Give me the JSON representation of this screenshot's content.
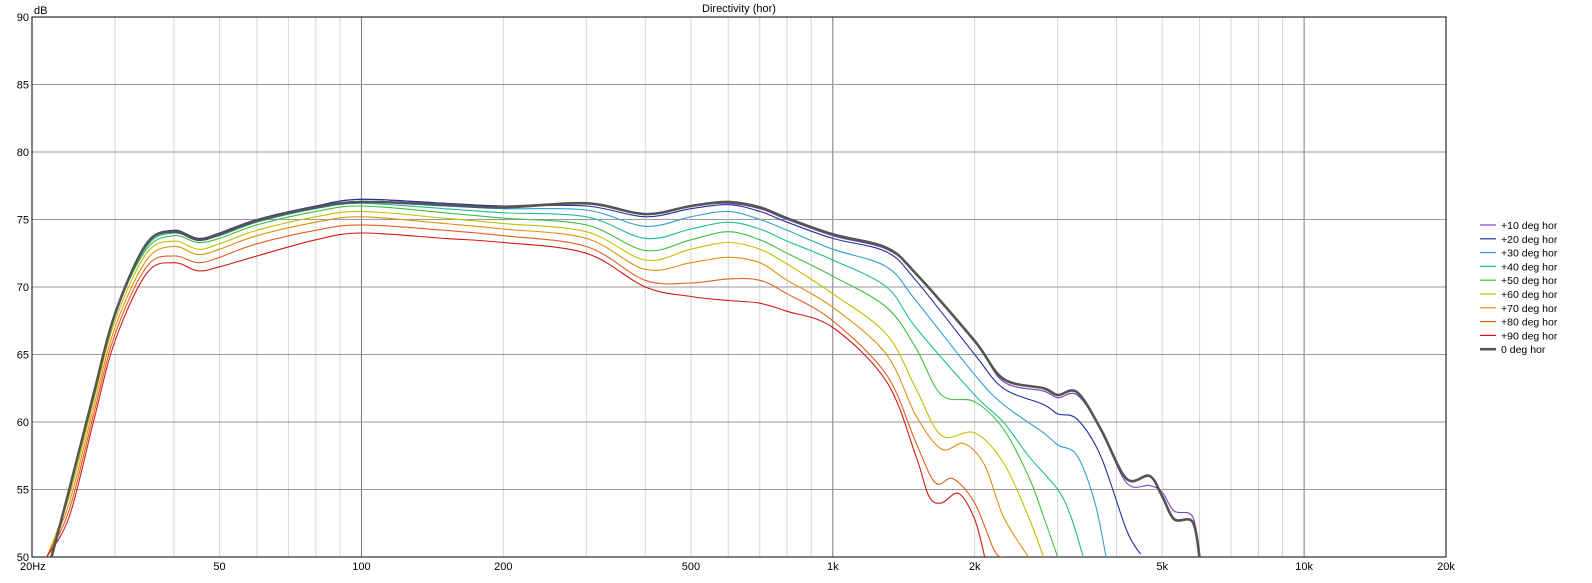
{
  "chart_data": {
    "type": "line",
    "title": "Directivity (hor)",
    "ylabel": "dB",
    "xlabel": "",
    "x_scale": "log",
    "xlim": [
      20,
      20000
    ],
    "ylim": [
      50,
      90
    ],
    "grid": true,
    "legend_position": "right",
    "x_tick_labels": [
      {
        "value": 20,
        "label": "20Hz"
      },
      {
        "value": 50,
        "label": "50"
      },
      {
        "value": 100,
        "label": "100"
      },
      {
        "value": 200,
        "label": "200"
      },
      {
        "value": 500,
        "label": "500"
      },
      {
        "value": 1000,
        "label": "1k"
      },
      {
        "value": 2000,
        "label": "2k"
      },
      {
        "value": 5000,
        "label": "5k"
      },
      {
        "value": 10000,
        "label": "10k"
      },
      {
        "value": 20000,
        "label": "20k"
      }
    ],
    "y_tick_labels": [
      {
        "value": 90,
        "label": "90"
      },
      {
        "value": 85,
        "label": "85"
      },
      {
        "value": 80,
        "label": "80"
      },
      {
        "value": 75,
        "label": "75"
      },
      {
        "value": 70,
        "label": "70"
      },
      {
        "value": 65,
        "label": "65"
      },
      {
        "value": 60,
        "label": "60"
      },
      {
        "value": 55,
        "label": "55"
      },
      {
        "value": 50,
        "label": "50"
      }
    ],
    "series": [
      {
        "name": "+10 deg hor",
        "color": "#7f3fbf",
        "points": [
          [
            22,
            50
          ],
          [
            24,
            55
          ],
          [
            27,
            62
          ],
          [
            30,
            68
          ],
          [
            35,
            73.2
          ],
          [
            40,
            74.2
          ],
          [
            45,
            73.6
          ],
          [
            50,
            74.0
          ],
          [
            60,
            75
          ],
          [
            80,
            76
          ],
          [
            100,
            76.5
          ],
          [
            150,
            76.2
          ],
          [
            200,
            76
          ],
          [
            300,
            76.2
          ],
          [
            400,
            75.4
          ],
          [
            500,
            76
          ],
          [
            600,
            76.2
          ],
          [
            700,
            75.8
          ],
          [
            800,
            75
          ],
          [
            1000,
            73.8
          ],
          [
            1300,
            72.8
          ],
          [
            1500,
            71
          ],
          [
            2000,
            66
          ],
          [
            2300,
            63
          ],
          [
            2800,
            62.3
          ],
          [
            3000,
            61.8
          ],
          [
            3300,
            62
          ],
          [
            3700,
            59.5
          ],
          [
            4200,
            55.5
          ],
          [
            4700,
            55.3
          ],
          [
            5000,
            54.8
          ],
          [
            5300,
            53.4
          ],
          [
            5800,
            53
          ],
          [
            6000,
            50
          ]
        ]
      },
      {
        "name": "+20 deg hor",
        "color": "#1f2f9f",
        "points": [
          [
            22,
            50
          ],
          [
            24,
            55
          ],
          [
            27,
            62
          ],
          [
            30,
            68
          ],
          [
            35,
            73.2
          ],
          [
            40,
            74.2
          ],
          [
            45,
            73.6
          ],
          [
            50,
            74.0
          ],
          [
            60,
            75
          ],
          [
            80,
            76
          ],
          [
            100,
            76.5
          ],
          [
            150,
            76.2
          ],
          [
            200,
            76
          ],
          [
            300,
            76
          ],
          [
            400,
            75.2
          ],
          [
            500,
            75.8
          ],
          [
            600,
            76.1
          ],
          [
            700,
            75.6
          ],
          [
            800,
            74.8
          ],
          [
            1000,
            73.6
          ],
          [
            1300,
            72.6
          ],
          [
            1500,
            70.5
          ],
          [
            2000,
            65
          ],
          [
            2300,
            62.5
          ],
          [
            2800,
            61.3
          ],
          [
            3000,
            60.6
          ],
          [
            3300,
            60.2
          ],
          [
            3700,
            57.5
          ],
          [
            4200,
            52
          ],
          [
            4500,
            50.2
          ]
        ]
      },
      {
        "name": "+30 deg hor",
        "color": "#2f9fcf",
        "points": [
          [
            22,
            50
          ],
          [
            24,
            55
          ],
          [
            27,
            62
          ],
          [
            30,
            68
          ],
          [
            35,
            73
          ],
          [
            40,
            74
          ],
          [
            45,
            73.5
          ],
          [
            50,
            73.9
          ],
          [
            60,
            74.9
          ],
          [
            80,
            75.9
          ],
          [
            100,
            76.3
          ],
          [
            150,
            76
          ],
          [
            200,
            75.8
          ],
          [
            300,
            75.7
          ],
          [
            400,
            74.5
          ],
          [
            500,
            75.2
          ],
          [
            600,
            75.6
          ],
          [
            700,
            75
          ],
          [
            800,
            74.2
          ],
          [
            1000,
            72.8
          ],
          [
            1300,
            71.5
          ],
          [
            1500,
            69
          ],
          [
            2000,
            63.5
          ],
          [
            2300,
            61.3
          ],
          [
            2800,
            59.2
          ],
          [
            3000,
            58.3
          ],
          [
            3300,
            57.5
          ],
          [
            3600,
            54
          ],
          [
            3800,
            50
          ]
        ]
      },
      {
        "name": "+40 deg hor",
        "color": "#1fbf8f",
        "points": [
          [
            22,
            50
          ],
          [
            24,
            55
          ],
          [
            27,
            62
          ],
          [
            30,
            68
          ],
          [
            35,
            73
          ],
          [
            40,
            74
          ],
          [
            45,
            73.5
          ],
          [
            50,
            73.8
          ],
          [
            60,
            74.8
          ],
          [
            80,
            75.8
          ],
          [
            100,
            76.2
          ],
          [
            150,
            75.8
          ],
          [
            200,
            75.5
          ],
          [
            300,
            75.2
          ],
          [
            400,
            73.6
          ],
          [
            500,
            74.3
          ],
          [
            600,
            74.8
          ],
          [
            700,
            74.3
          ],
          [
            800,
            73.4
          ],
          [
            1000,
            72
          ],
          [
            1300,
            70
          ],
          [
            1500,
            67
          ],
          [
            2000,
            62
          ],
          [
            2300,
            60
          ],
          [
            2600,
            57.5
          ],
          [
            3000,
            55
          ],
          [
            3200,
            53
          ],
          [
            3400,
            50
          ]
        ]
      },
      {
        "name": "+50 deg hor",
        "color": "#3fbf3f",
        "points": [
          [
            22,
            50
          ],
          [
            24,
            55
          ],
          [
            27,
            62
          ],
          [
            30,
            68
          ],
          [
            35,
            72.8
          ],
          [
            40,
            73.8
          ],
          [
            45,
            73.3
          ],
          [
            50,
            73.6
          ],
          [
            60,
            74.6
          ],
          [
            80,
            75.6
          ],
          [
            100,
            76
          ],
          [
            150,
            75.5
          ],
          [
            200,
            75.1
          ],
          [
            300,
            74.6
          ],
          [
            400,
            72.7
          ],
          [
            500,
            73.5
          ],
          [
            600,
            74.1
          ],
          [
            700,
            73.5
          ],
          [
            800,
            72.5
          ],
          [
            1000,
            70.8
          ],
          [
            1300,
            68.5
          ],
          [
            1500,
            65.5
          ],
          [
            1700,
            62
          ],
          [
            2000,
            61.5
          ],
          [
            2300,
            59.5
          ],
          [
            2600,
            56
          ],
          [
            2800,
            53
          ],
          [
            3000,
            50
          ]
        ]
      },
      {
        "name": "+60 deg hor",
        "color": "#c0c000",
        "points": [
          [
            21.5,
            50
          ],
          [
            24,
            54.5
          ],
          [
            27,
            61.5
          ],
          [
            30,
            67.5
          ],
          [
            35,
            72.5
          ],
          [
            40,
            73.4
          ],
          [
            45,
            72.8
          ],
          [
            50,
            73.2
          ],
          [
            60,
            74.2
          ],
          [
            80,
            75.2
          ],
          [
            100,
            75.6
          ],
          [
            150,
            75.1
          ],
          [
            200,
            74.7
          ],
          [
            300,
            74.1
          ],
          [
            400,
            72
          ],
          [
            500,
            72.8
          ],
          [
            600,
            73.3
          ],
          [
            700,
            72.8
          ],
          [
            800,
            71.7
          ],
          [
            1000,
            69.5
          ],
          [
            1300,
            66.5
          ],
          [
            1500,
            62.5
          ],
          [
            1700,
            59
          ],
          [
            2000,
            59.2
          ],
          [
            2300,
            57
          ],
          [
            2600,
            53
          ],
          [
            2800,
            50
          ]
        ]
      },
      {
        "name": "+70 deg hor",
        "color": "#e09010",
        "points": [
          [
            21.5,
            50
          ],
          [
            24,
            54
          ],
          [
            27,
            61
          ],
          [
            30,
            67
          ],
          [
            35,
            72
          ],
          [
            40,
            73
          ],
          [
            45,
            72.4
          ],
          [
            50,
            72.8
          ],
          [
            60,
            73.8
          ],
          [
            80,
            74.8
          ],
          [
            100,
            75.2
          ],
          [
            150,
            74.7
          ],
          [
            200,
            74.3
          ],
          [
            300,
            73.6
          ],
          [
            400,
            71.3
          ],
          [
            500,
            71.8
          ],
          [
            600,
            72.2
          ],
          [
            700,
            71.8
          ],
          [
            800,
            70.5
          ],
          [
            1000,
            68.5
          ],
          [
            1300,
            65
          ],
          [
            1500,
            60.5
          ],
          [
            1700,
            58
          ],
          [
            1900,
            58.4
          ],
          [
            2100,
            56.8
          ],
          [
            2300,
            53
          ],
          [
            2600,
            50
          ]
        ]
      },
      {
        "name": "+80 deg hor",
        "color": "#e06020",
        "points": [
          [
            21.5,
            50
          ],
          [
            24,
            53.5
          ],
          [
            27,
            60.5
          ],
          [
            30,
            66.5
          ],
          [
            35,
            71.5
          ],
          [
            40,
            72.3
          ],
          [
            45,
            71.8
          ],
          [
            50,
            72.2
          ],
          [
            60,
            73.2
          ],
          [
            80,
            74.2
          ],
          [
            100,
            74.6
          ],
          [
            150,
            74.2
          ],
          [
            200,
            73.8
          ],
          [
            300,
            73
          ],
          [
            400,
            70.5
          ],
          [
            500,
            70.3
          ],
          [
            600,
            70.6
          ],
          [
            700,
            70.5
          ],
          [
            800,
            69.5
          ],
          [
            1000,
            67.5
          ],
          [
            1300,
            63.5
          ],
          [
            1500,
            58.5
          ],
          [
            1650,
            55.5
          ],
          [
            1800,
            55.8
          ],
          [
            2000,
            54
          ],
          [
            2200,
            50.5
          ],
          [
            2300,
            50
          ]
        ]
      },
      {
        "name": "+90 deg hor",
        "color": "#d01818",
        "points": [
          [
            21.5,
            50
          ],
          [
            24,
            53
          ],
          [
            27,
            60
          ],
          [
            30,
            66
          ],
          [
            35,
            71
          ],
          [
            40,
            71.8
          ],
          [
            45,
            71.2
          ],
          [
            50,
            71.5
          ],
          [
            60,
            72.3
          ],
          [
            80,
            73.5
          ],
          [
            100,
            74
          ],
          [
            150,
            73.6
          ],
          [
            200,
            73.3
          ],
          [
            300,
            72.5
          ],
          [
            400,
            70
          ],
          [
            500,
            69.3
          ],
          [
            600,
            69
          ],
          [
            700,
            68.8
          ],
          [
            800,
            68.2
          ],
          [
            1000,
            67
          ],
          [
            1300,
            63
          ],
          [
            1500,
            57.5
          ],
          [
            1600,
            54.5
          ],
          [
            1700,
            54
          ],
          [
            1850,
            54.7
          ],
          [
            2000,
            52.8
          ],
          [
            2100,
            50
          ]
        ]
      },
      {
        "name": "0 deg hor",
        "color": "#555555",
        "points": [
          [
            22,
            50
          ],
          [
            24,
            55
          ],
          [
            27,
            62
          ],
          [
            30,
            68
          ],
          [
            35,
            73.2
          ],
          [
            40,
            74.1
          ],
          [
            45,
            73.5
          ],
          [
            50,
            73.9
          ],
          [
            60,
            74.9
          ],
          [
            80,
            75.9
          ],
          [
            100,
            76.3
          ],
          [
            150,
            76.1
          ],
          [
            200,
            75.9
          ],
          [
            300,
            76.2
          ],
          [
            400,
            75.4
          ],
          [
            500,
            76
          ],
          [
            600,
            76.3
          ],
          [
            700,
            75.9
          ],
          [
            800,
            75.1
          ],
          [
            1000,
            73.9
          ],
          [
            1300,
            72.9
          ],
          [
            1500,
            71
          ],
          [
            2000,
            66
          ],
          [
            2300,
            63.2
          ],
          [
            2800,
            62.5
          ],
          [
            3000,
            62
          ],
          [
            3300,
            62.2
          ],
          [
            3700,
            59.5
          ],
          [
            4200,
            55.8
          ],
          [
            4700,
            56
          ],
          [
            5000,
            54.5
          ],
          [
            5300,
            52.8
          ],
          [
            5800,
            52.6
          ],
          [
            6000,
            50
          ]
        ]
      }
    ]
  }
}
